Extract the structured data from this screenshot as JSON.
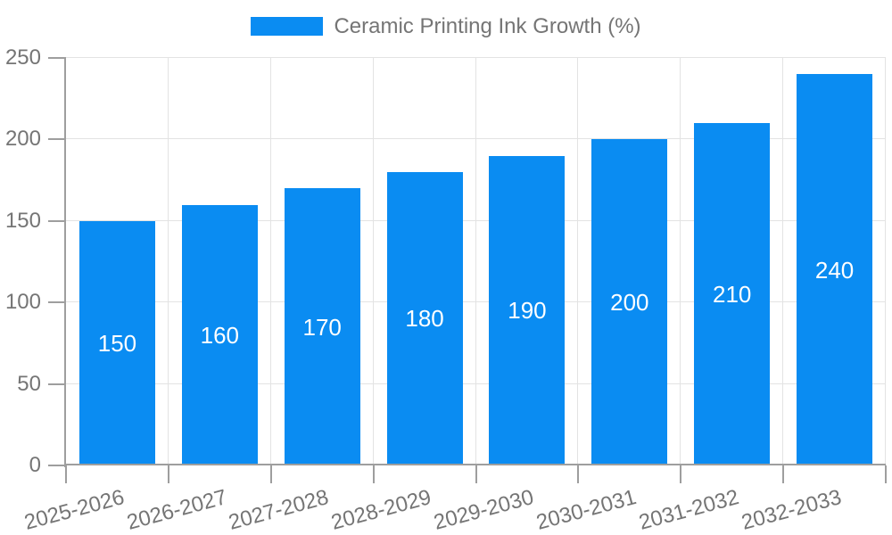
{
  "chart_data": {
    "type": "bar",
    "title": "Ceramic Printing Ink Growth (%)",
    "categories": [
      "2025-2026",
      "2026-2027",
      "2027-2028",
      "2028-2029",
      "2029-2030",
      "2030-2031",
      "2031-2032",
      "2032-2033"
    ],
    "values": [
      150,
      160,
      170,
      180,
      190,
      200,
      210,
      240
    ],
    "bar_value_labels": [
      "150",
      "160",
      "170",
      "180",
      "190",
      "200",
      "210",
      "240"
    ],
    "xlabel": "",
    "ylabel": "",
    "ylim": [
      0,
      250
    ],
    "yticks": [
      0,
      50,
      100,
      150,
      200,
      250
    ],
    "ytick_labels": [
      "0",
      "50",
      "100",
      "150",
      "200",
      "250"
    ],
    "grid": true,
    "legend_position": "top",
    "colors": {
      "bar": "#0a8cf2",
      "axis": "#9e9e9e",
      "gridline": "#e3e3e3",
      "text": "#757575",
      "value_label": "#ffffff",
      "background": "#ffffff"
    }
  }
}
